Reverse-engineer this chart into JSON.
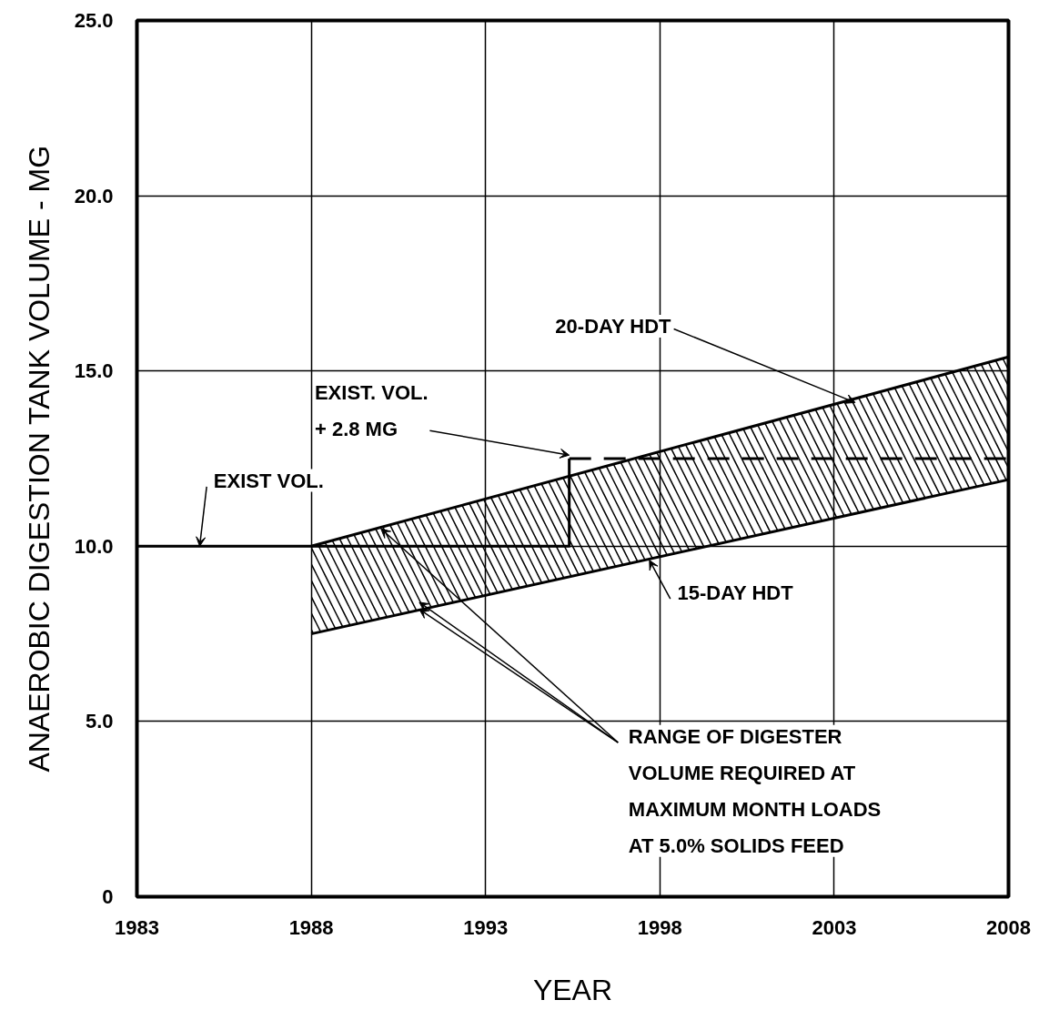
{
  "chart_data": {
    "type": "line",
    "xlabel": "YEAR",
    "ylabel": "ANAEROBIC DIGESTION TANK VOLUME - MG",
    "xlim": [
      1983,
      2008
    ],
    "ylim": [
      0,
      25
    ],
    "xticks": [
      1983,
      1988,
      1993,
      1998,
      2003,
      2008
    ],
    "yticks": [
      0,
      {
        "value": 5,
        "label": "5.0"
      },
      {
        "value": 10,
        "label": "10.0"
      },
      {
        "value": 15,
        "label": "15.0"
      },
      {
        "value": 20,
        "label": "20.0"
      },
      {
        "value": 25,
        "label": "25.0"
      }
    ],
    "grid": true,
    "marker": "none",
    "series": [
      {
        "x": [
          1988,
          2008
        ],
        "values": [
          10.0,
          15.4
        ],
        "lower": [
          7.5,
          11.9
        ],
        "upper": [
          10.0,
          15.4
        ],
        "color": "#000000",
        "line_style": "solid"
      },
      {
        "x": [
          1988,
          2008
        ],
        "values": [
          7.5,
          11.9
        ],
        "color": "#000000",
        "line_style": "solid"
      },
      {
        "x": [
          1983,
          1995.4,
          1995.4
        ],
        "values": [
          10.0,
          10.0,
          12.5
        ],
        "color": "#000000",
        "line_style": "solid"
      },
      {
        "x": [
          1995.4,
          2008
        ],
        "values": [
          12.5,
          12.5
        ],
        "color": "#000000",
        "line_style": "dashed"
      }
    ],
    "annotations": [
      {
        "text": "EXIST VOL.",
        "x": 1984.8,
        "y": 10.0
      },
      {
        "text": "EXIST. VOL.\n+ 2.8 MG",
        "x": 1995.4,
        "y": 12.6
      },
      {
        "text": "20-DAY HDT",
        "x": 2003.6,
        "y": 14.1
      },
      {
        "text": "15-DAY HDT",
        "x": 1997.7,
        "y": 9.6
      },
      {
        "text": "RANGE OF DIGESTER\nVOLUME REQUIRED AT\nMAXIMUM MONTH LOADS\nAT 5.0% SOLIDS FEED",
        "x": 1991.1,
        "y": 8.2
      }
    ]
  }
}
